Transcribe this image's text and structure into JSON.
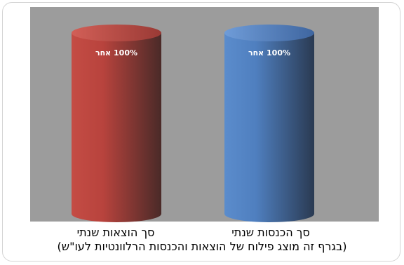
{
  "chart_data": {
    "type": "bar",
    "style": "3d-cylinder",
    "categories": [
      "סך הוצאות שנתי",
      "סך הכנסות שנתי"
    ],
    "values": [
      100,
      100
    ],
    "data_labels": [
      "100% אחר",
      "100% אחר"
    ],
    "colors": [
      "#b8433d",
      "#4f81bd"
    ],
    "background": "#9c9c9c",
    "ylim": [
      0,
      100
    ],
    "grid": false,
    "legend": "none",
    "caption": "(בגרף זה מוצג פילוח של הוצאות והכנסות הרלוונטיות לעו\"ש)"
  }
}
